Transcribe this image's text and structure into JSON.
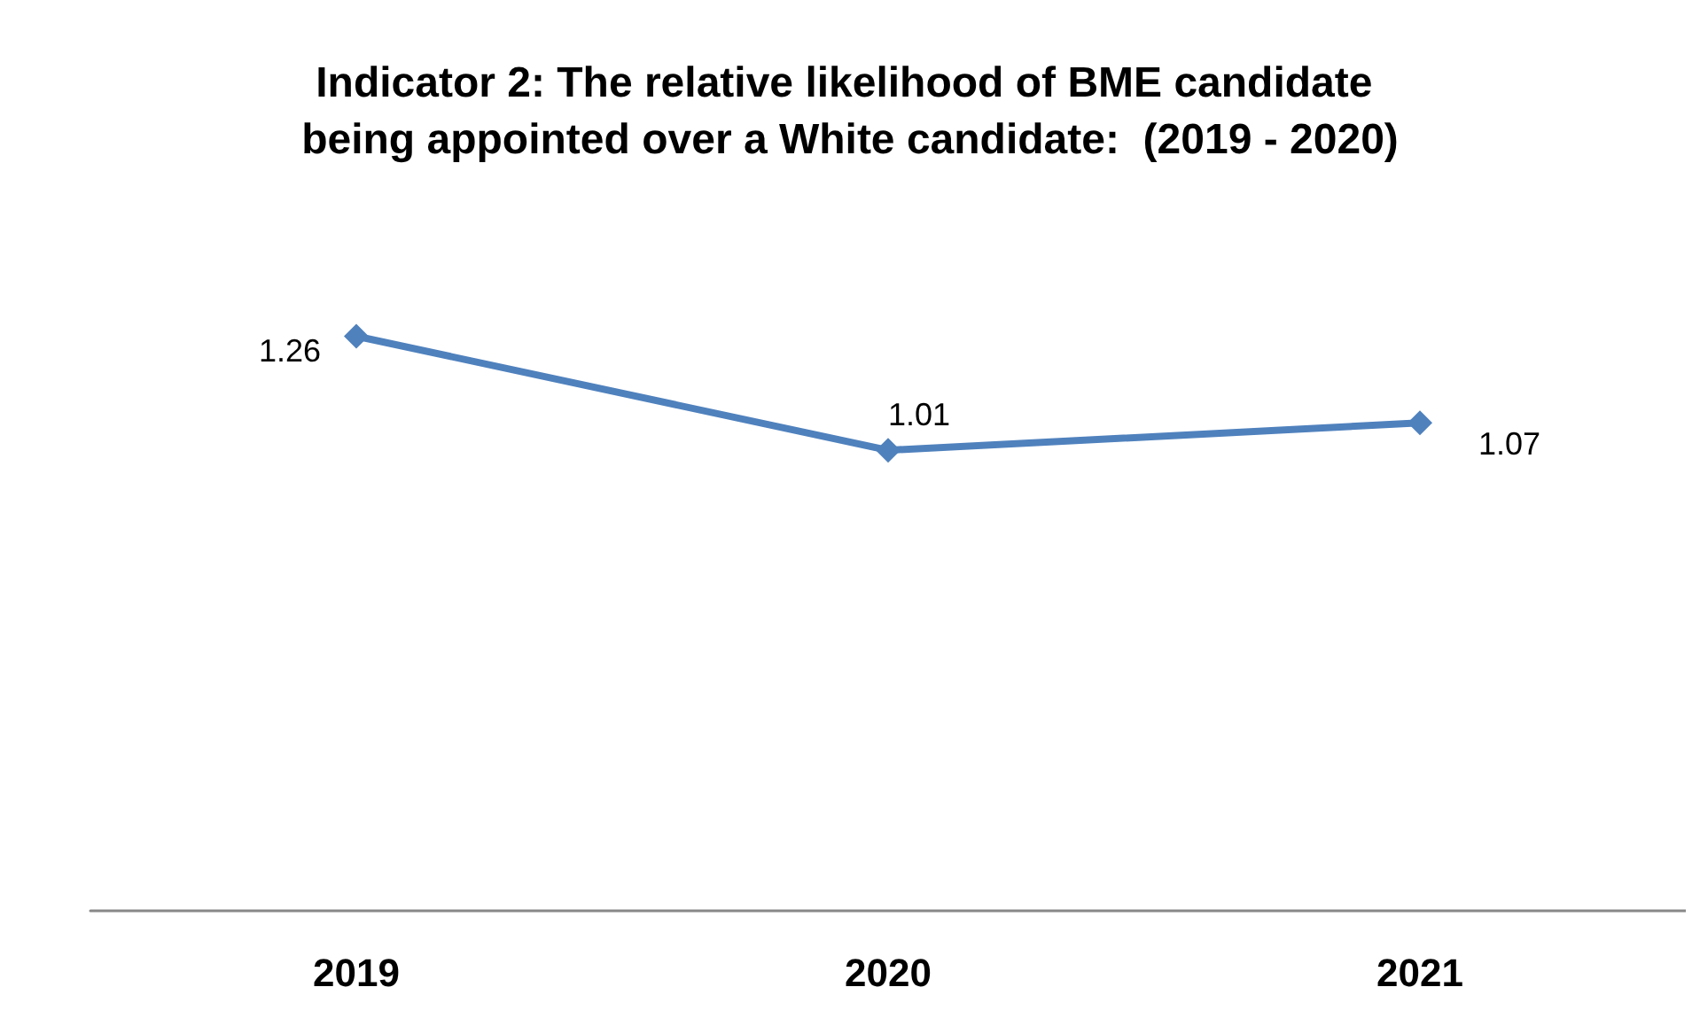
{
  "chart_data": {
    "type": "line",
    "title": "Indicator 2: The relative likelihood of BME candidate being appointed over a White candidate:  (2019 - 2020)",
    "categories": [
      "2019",
      "2020",
      "2021"
    ],
    "series": [
      {
        "color": "#4f81bd",
        "values": [
          1.26,
          1.01,
          1.07
        ]
      }
    ],
    "tick_labels": "x",
    "data_labels": true,
    "marker": "diamond",
    "line_style": "solid",
    "grid": false
  }
}
